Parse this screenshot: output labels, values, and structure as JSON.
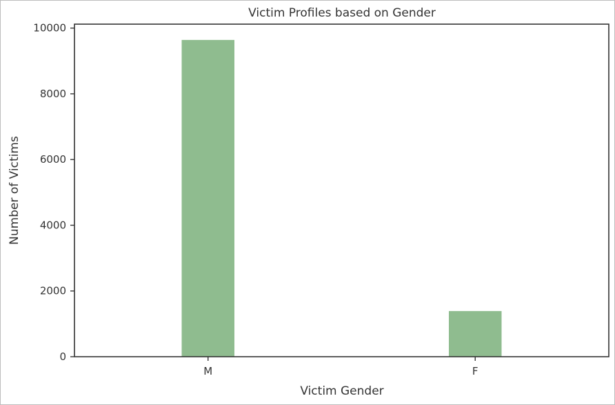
{
  "chart_data": {
    "type": "bar",
    "title": "Victim Profiles based on Gender",
    "xlabel": "Victim Gender",
    "ylabel": "Number of Victims",
    "categories": [
      "M",
      "F"
    ],
    "values": [
      9650,
      1400
    ],
    "ylim": [
      0,
      10120
    ],
    "yticks": [
      0,
      2000,
      4000,
      6000,
      8000,
      10000
    ],
    "grid": false,
    "bar_color": "#8fbc8f"
  }
}
